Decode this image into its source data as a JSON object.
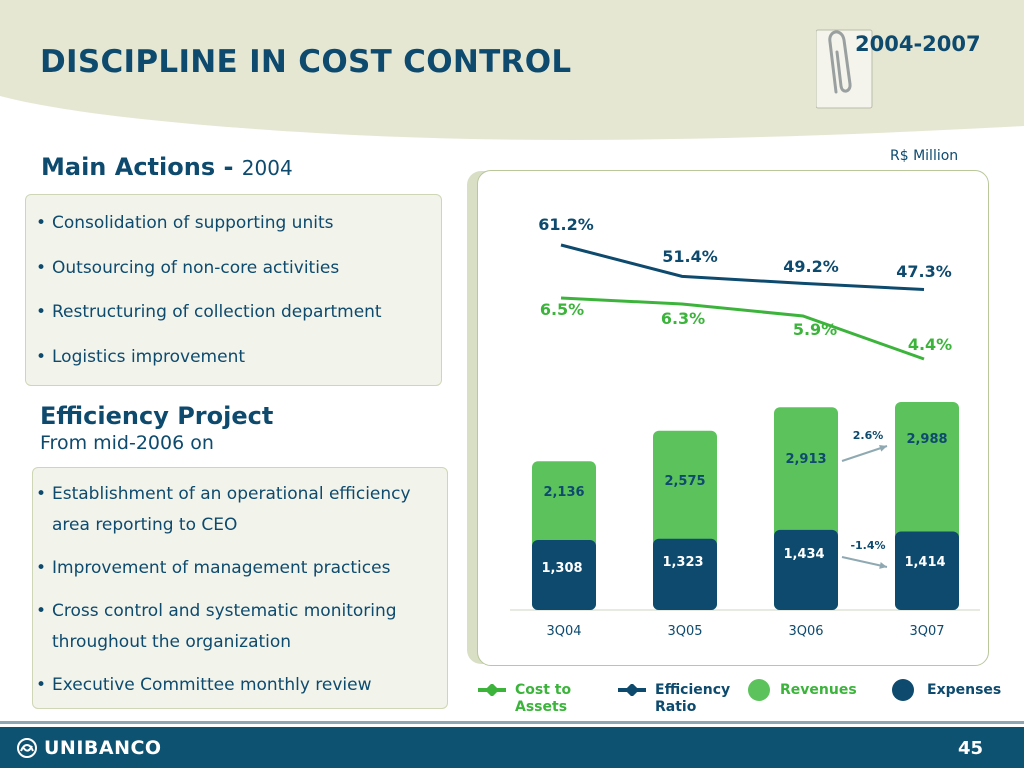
{
  "header": {
    "title": "DISCIPLINE IN COST CONTROL",
    "period": "2004-2007"
  },
  "main_actions": {
    "title": "Main Actions - ",
    "year": "2004",
    "items": [
      "Consolidation of supporting units",
      "Outsourcing of non-core activities",
      "Restructuring of collection department",
      "Logistics improvement"
    ]
  },
  "efficiency_project": {
    "title": "Efficiency Project",
    "subtitle": "From mid-2006 on",
    "items": [
      "Establishment of an operational efficiency area reporting to CEO",
      "Improvement of management practices",
      "Cross control and systematic monitoring throughout the organization",
      "Executive Committee monthly review"
    ]
  },
  "chart_unit": "R$ Million",
  "chart_data": {
    "type": "bar",
    "categories": [
      "3Q04",
      "3Q05",
      "3Q06",
      "3Q07"
    ],
    "series": [
      {
        "name": "Revenues",
        "values": [
          2136,
          2575,
          2913,
          2988
        ],
        "labels": [
          "2,136",
          "2,575",
          "2,913",
          "2,988"
        ],
        "color": "#5cc35c"
      },
      {
        "name": "Expenses",
        "values": [
          1308,
          1323,
          1434,
          1414
        ],
        "labels": [
          "1,308",
          "1,323",
          "1,434",
          "1,414"
        ],
        "color": "#0d4a6e"
      },
      {
        "name": "Efficiency Ratio",
        "type": "line",
        "values": [
          61.2,
          51.4,
          49.2,
          47.3
        ],
        "labels": [
          "61.2%",
          "51.4%",
          "49.2%",
          "47.3%"
        ],
        "color": "#0d4a6e"
      },
      {
        "name": "Cost to Assets",
        "type": "line",
        "values": [
          6.5,
          6.3,
          5.9,
          4.4
        ],
        "labels": [
          "6.5%",
          "6.3%",
          "5.9%",
          "4.4%"
        ],
        "color": "#3cb43c"
      }
    ],
    "annotations": [
      {
        "text": "2.6%",
        "series": "Revenues",
        "from": "3Q06",
        "to": "3Q07"
      },
      {
        "text": "-1.4%",
        "series": "Expenses",
        "from": "3Q06",
        "to": "3Q07"
      }
    ]
  },
  "legend": {
    "cost_to_assets": "Cost to Assets",
    "efficiency_ratio": "Efficiency Ratio",
    "revenues": "Revenues",
    "expenses": "Expenses"
  },
  "footer": {
    "logo": "UNIBANCO",
    "page": "45"
  },
  "colors": {
    "brand": "#0d4a6e",
    "green": "#5cc35c",
    "line_green": "#3cb43c",
    "band": "#e6e7d3"
  }
}
